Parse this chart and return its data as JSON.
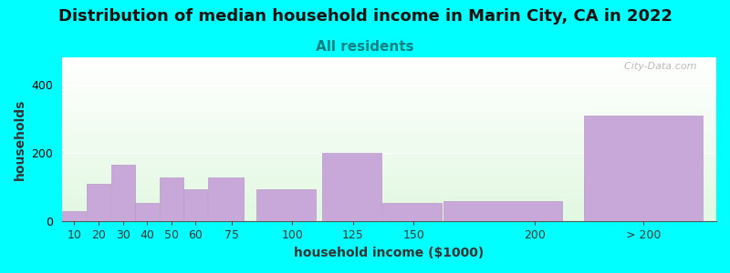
{
  "title": "Distribution of median household income in Marin City, CA in 2022",
  "subtitle": "All residents",
  "xlabel": "household income ($1000)",
  "ylabel": "households",
  "background_color": "#00FFFF",
  "bar_color": "#c8a8d8",
  "bar_edge_color": "#b898c8",
  "title_fontsize": 13,
  "subtitle_fontsize": 11,
  "label_fontsize": 10,
  "tick_fontsize": 9,
  "values": [
    30,
    110,
    165,
    55,
    130,
    95,
    130,
    95,
    200,
    55,
    60,
    310
  ],
  "bar_widths": [
    10,
    10,
    10,
    10,
    10,
    10,
    15,
    25,
    25,
    25,
    50,
    50
  ],
  "bar_lefts": [
    5,
    15,
    25,
    35,
    45,
    55,
    65,
    85,
    112,
    137,
    162,
    220
  ],
  "xlim": [
    5,
    275
  ],
  "ylim": [
    0,
    480
  ],
  "yticks": [
    0,
    200,
    400
  ],
  "xtick_positions": [
    10,
    20,
    30,
    40,
    50,
    60,
    75,
    100,
    125,
    150,
    200,
    245
  ],
  "xtick_labels": [
    "10",
    "20",
    "30",
    "40",
    "50",
    "60",
    "75",
    "100",
    "125",
    "150",
    "200",
    "> 200"
  ],
  "watermark": "  City-Data.com"
}
